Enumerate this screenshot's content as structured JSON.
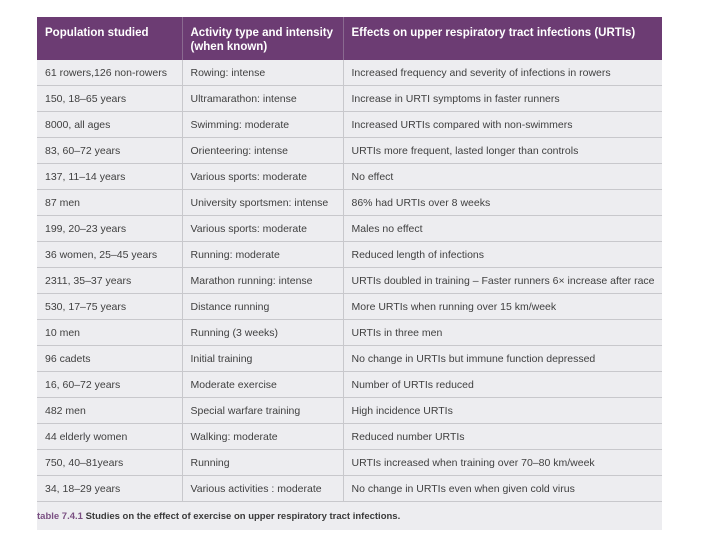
{
  "table": {
    "headers": [
      "Population studied",
      "Activity type and intensity (when known)",
      "Effects on upper respiratory tract infections (URTIs)"
    ],
    "rows": [
      [
        "61 rowers,126 non-rowers",
        "Rowing: intense",
        "Increased frequency and severity of infections in rowers"
      ],
      [
        "150, 18–65 years",
        "Ultramarathon: intense",
        "Increase in URTI symptoms in faster runners"
      ],
      [
        "8000, all ages",
        "Swimming: moderate",
        "Increased URTIs compared with non-swimmers"
      ],
      [
        "83, 60–72 years",
        "Orienteering: intense",
        "URTIs more frequent, lasted longer than controls"
      ],
      [
        "137, 11–14 years",
        "Various sports: moderate",
        "No effect"
      ],
      [
        "87 men",
        "University sportsmen: intense",
        "86% had URTIs over 8 weeks"
      ],
      [
        "199, 20–23 years",
        "Various sports: moderate",
        "Males no effect"
      ],
      [
        "36 women, 25–45 years",
        "Running: moderate",
        "Reduced length of infections"
      ],
      [
        "2311, 35–37 years",
        "Marathon running: intense",
        "URTIs doubled in training – Faster runners 6× increase after race"
      ],
      [
        "530, 17–75 years",
        "Distance running",
        "More URTIs when running over 15 km/week"
      ],
      [
        "10 men",
        "Running (3 weeks)",
        "URTIs in three men"
      ],
      [
        "96 cadets",
        "Initial training",
        "No change in URTIs but immune function depressed"
      ],
      [
        "16, 60–72 years",
        "Moderate exercise",
        "Number of URTIs reduced"
      ],
      [
        "482 men",
        "Special warfare training",
        "High incidence URTIs"
      ],
      [
        "44 elderly women",
        "Walking: moderate",
        "Reduced number URTIs"
      ],
      [
        "750, 40–81years",
        "Running",
        "URTIs increased when training over 70–80 km/week"
      ],
      [
        "34, 18–29 years",
        "Various activities : moderate",
        "No change in URTIs even when given cold virus"
      ]
    ]
  },
  "caption": {
    "label": "table 7.4.1",
    "text": "Studies on the effect of exercise on upper respiratory tract infections."
  }
}
